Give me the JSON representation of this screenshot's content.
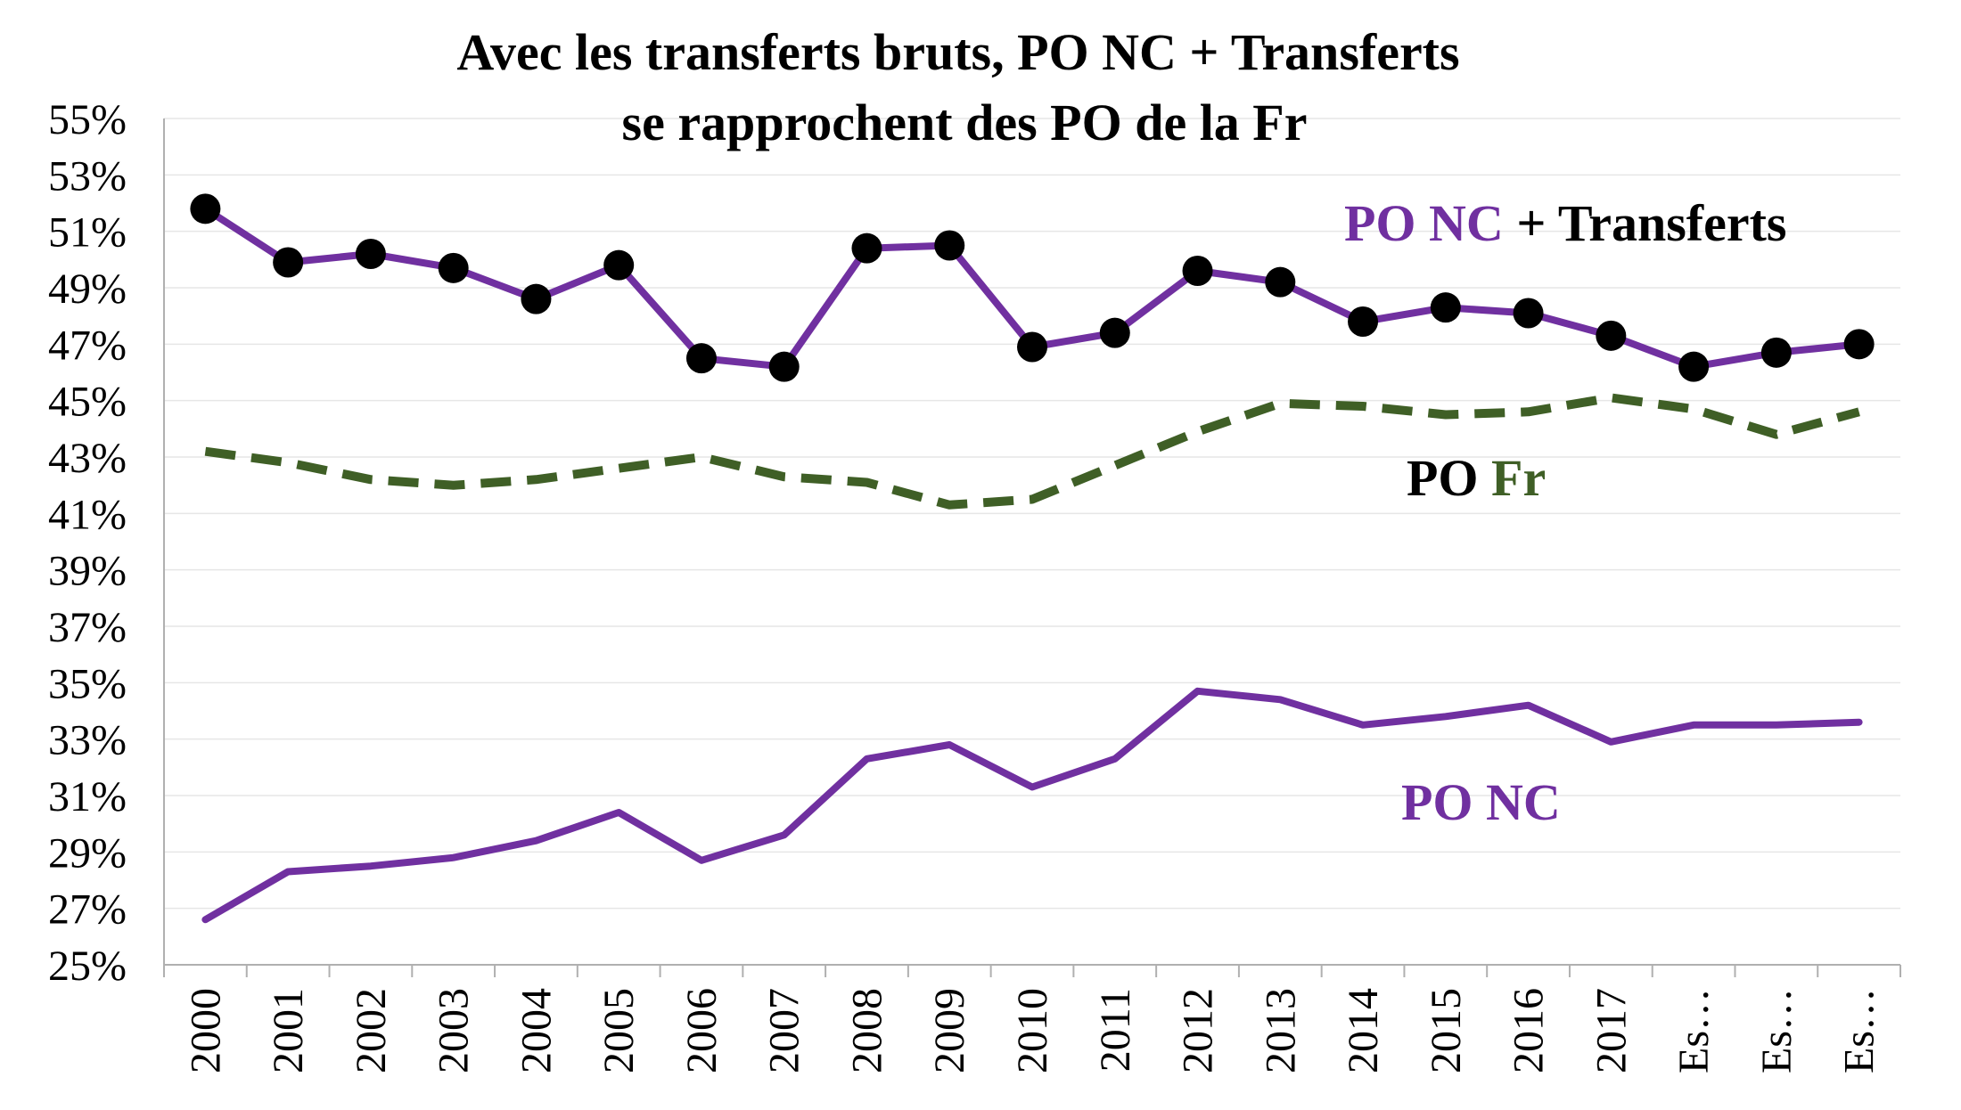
{
  "chart_data": {
    "type": "line",
    "title": "Avec les transferts bruts, PO NC + Transferts",
    "subtitle": "se rapprochent des PO de la Fr",
    "xlabel": "",
    "ylabel": "",
    "ylim": [
      25,
      55
    ],
    "y_ticks": [
      "25%",
      "27%",
      "29%",
      "31%",
      "33%",
      "35%",
      "37%",
      "39%",
      "41%",
      "43%",
      "45%",
      "47%",
      "49%",
      "51%",
      "53%",
      "55%"
    ],
    "y_tick_values": [
      25,
      27,
      29,
      31,
      33,
      35,
      37,
      39,
      41,
      43,
      45,
      47,
      49,
      51,
      53,
      55
    ],
    "categories": [
      "2000",
      "2001",
      "2002",
      "2003",
      "2004",
      "2005",
      "2006",
      "2007",
      "2008",
      "2009",
      "2010",
      "2011",
      "2012",
      "2013",
      "2014",
      "2015",
      "2016",
      "2017",
      "Es…",
      "Es…",
      "Es…"
    ],
    "grid": true,
    "legend": "inline labels near series",
    "series": [
      {
        "name": "PO NC + Transferts",
        "color": "#7030a0",
        "marker_color": "#000000",
        "style": "solid-with-markers",
        "values": [
          51.8,
          49.9,
          50.2,
          49.7,
          48.6,
          49.8,
          46.5,
          46.2,
          50.4,
          50.5,
          46.9,
          47.4,
          49.6,
          49.2,
          47.8,
          48.3,
          48.1,
          47.3,
          46.2,
          46.7,
          47.0
        ]
      },
      {
        "name": "PO Fr",
        "color": "#3f5f26",
        "style": "dashed",
        "values": [
          43.2,
          42.8,
          42.2,
          42.0,
          42.2,
          42.6,
          43.0,
          42.3,
          42.1,
          41.3,
          41.5,
          42.7,
          43.9,
          44.9,
          44.8,
          44.5,
          44.6,
          45.1,
          44.7,
          43.8,
          44.6
        ]
      },
      {
        "name": "PO NC",
        "color": "#7030a0",
        "style": "solid",
        "values": [
          26.6,
          28.3,
          28.5,
          28.8,
          29.4,
          30.4,
          28.7,
          29.6,
          32.3,
          32.8,
          31.3,
          32.3,
          34.7,
          34.4,
          33.5,
          33.8,
          34.2,
          32.9,
          33.5,
          33.5,
          33.6
        ]
      }
    ],
    "annotations": {
      "transferts_label": {
        "part1": "PO NC",
        "part1_color": "#7030a0",
        "part2": " + Transferts",
        "part2_color": "#000000"
      },
      "fr_label": {
        "part1": "PO ",
        "part1_color": "#000000",
        "part2": "Fr",
        "part2_color": "#3f5f26"
      },
      "ponc_label": {
        "text": "PO NC",
        "color": "#7030a0"
      }
    }
  }
}
